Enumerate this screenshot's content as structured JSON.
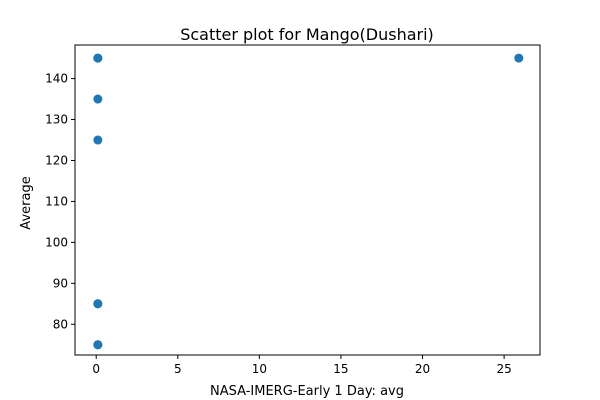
{
  "chart_data": {
    "type": "scatter",
    "title": "Scatter plot for Mango(Dushari)",
    "xlabel": "NASA-IMERG-Early 1 Day: avg",
    "ylabel": "Average",
    "xlim": [
      -1.3,
      27.2
    ],
    "ylim": [
      72.5,
      148.2
    ],
    "xticks": [
      0,
      5,
      10,
      15,
      20,
      25
    ],
    "yticks": [
      80,
      90,
      100,
      110,
      120,
      130,
      140
    ],
    "grid": false,
    "legend": "none",
    "marker_color": "#1f77b4",
    "points": [
      {
        "x": 0.1,
        "y": 145
      },
      {
        "x": 0.1,
        "y": 145
      },
      {
        "x": 0.1,
        "y": 135
      },
      {
        "x": 0.1,
        "y": 125
      },
      {
        "x": 0.1,
        "y": 85
      },
      {
        "x": 0.1,
        "y": 85
      },
      {
        "x": 0.1,
        "y": 75
      },
      {
        "x": 0.1,
        "y": 75
      },
      {
        "x": 25.9,
        "y": 145
      }
    ]
  }
}
